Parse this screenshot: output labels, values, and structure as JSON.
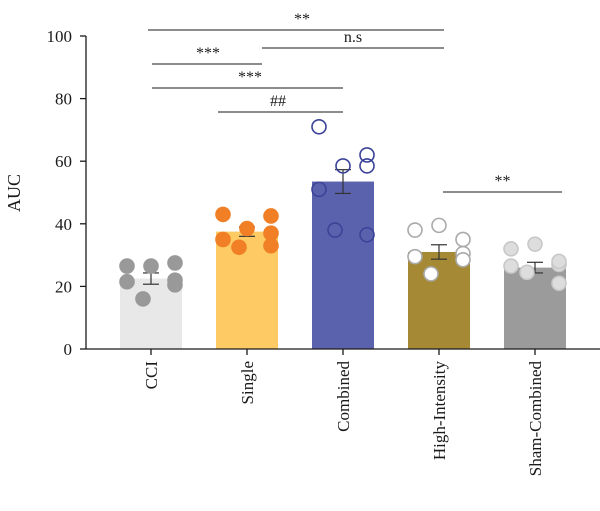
{
  "chart_data": {
    "type": "bar",
    "ylabel": "AUC",
    "xlabel": "",
    "ylim": [
      0,
      100
    ],
    "yticks": [
      0,
      20,
      40,
      60,
      80,
      100
    ],
    "categories": [
      "CCI",
      "Single",
      "Combined",
      "High-Intensity",
      "Sham-Combined"
    ],
    "values": [
      22.5,
      37.5,
      53.5,
      31,
      26
    ],
    "errors": [
      1.8,
      1.5,
      3.8,
      2.3,
      1.7
    ],
    "colors": {
      "bars": [
        "#e8e8e8",
        "#fdca63",
        "#5b62ad",
        "#a58935",
        "#9b9b9b"
      ],
      "points_fill": [
        "#999999",
        "#f07f26",
        "none",
        "#ffffff",
        "#dddddd"
      ],
      "points_stroke": [
        "#999999",
        "#f07f26",
        "#3b4398",
        "#aaaaaa",
        "#c8c8c8"
      ]
    },
    "points": [
      [
        26.5,
        26.5,
        27.5,
        22,
        21.5,
        20.5,
        16
      ],
      [
        43,
        38.5,
        37,
        42.5,
        35,
        33,
        32.5
      ],
      [
        71,
        58.5,
        62,
        58.5,
        51,
        36.5,
        38
      ],
      [
        38,
        39.5,
        35,
        30.5,
        29.5,
        28.5,
        24
      ],
      [
        32,
        33.5,
        27,
        28,
        26.5,
        21,
        24.5
      ]
    ],
    "significance": [
      {
        "label": "**",
        "from": 0,
        "to": 3
      },
      {
        "label": "n.s",
        "from": 1,
        "to": 3
      },
      {
        "label": "***",
        "from": 0,
        "to": 1
      },
      {
        "label": "***",
        "from": 0,
        "to": 2
      },
      {
        "label": "##",
        "from": 1,
        "to": 2
      },
      {
        "label": "**",
        "from": 3,
        "to": 4
      }
    ]
  }
}
